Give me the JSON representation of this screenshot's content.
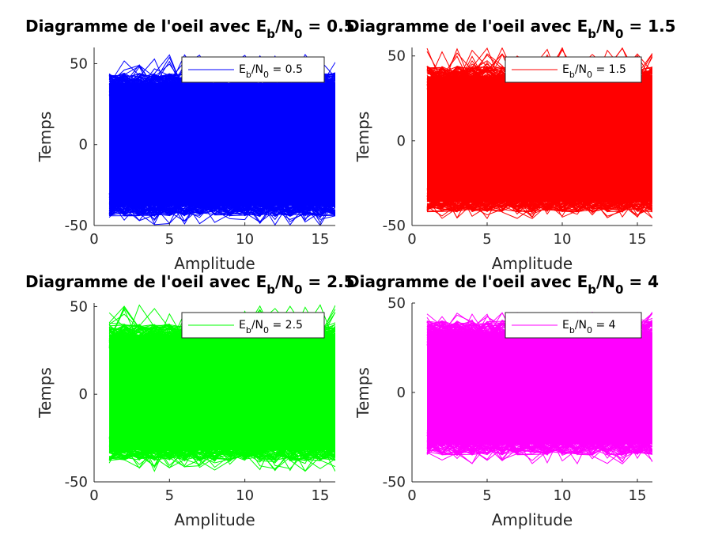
{
  "chart_data": [
    {
      "type": "line",
      "title_prefix": "Diagramme de l'oeil avec ",
      "ebn0": "0.5",
      "xlabel": "Amplitude",
      "ylabel": "Temps",
      "xlim": [
        0,
        16
      ],
      "ylim": [
        -50,
        60
      ],
      "xticks": [
        0,
        5,
        10,
        15
      ],
      "yticks": [
        -50,
        0,
        50
      ],
      "x_samples": [
        1,
        16
      ],
      "trace_range": [
        -42,
        42
      ],
      "trace_extremes": [
        -50,
        56
      ],
      "color": "#0000ff",
      "legend": {
        "location": "top-right",
        "entry": "E_b/N_0 = 0.5"
      }
    },
    {
      "type": "line",
      "title_prefix": "Diagramme de l'oeil avec ",
      "ebn0": "1.5",
      "xlabel": "Amplitude",
      "ylabel": "Temps",
      "xlim": [
        0,
        16
      ],
      "ylim": [
        -50,
        55
      ],
      "xticks": [
        0,
        5,
        10,
        15
      ],
      "yticks": [
        -50,
        0,
        50
      ],
      "x_samples": [
        1,
        16
      ],
      "trace_range": [
        -40,
        42
      ],
      "trace_extremes": [
        -46,
        55
      ],
      "color": "#ff0000",
      "legend": {
        "location": "top-right",
        "entry": "E_b/N_0 = 1.5"
      }
    },
    {
      "type": "line",
      "title_prefix": "Diagramme de l'oeil avec ",
      "ebn0": "2.5",
      "xlabel": "Amplitude",
      "ylabel": "Temps",
      "xlim": [
        0,
        16
      ],
      "ylim": [
        -50,
        52
      ],
      "xticks": [
        0,
        5,
        10,
        15
      ],
      "yticks": [
        -50,
        0,
        50
      ],
      "x_samples": [
        1,
        16
      ],
      "trace_range": [
        -36,
        38
      ],
      "trace_extremes": [
        -44,
        51
      ],
      "color": "#00ff00",
      "legend": {
        "location": "top-right",
        "entry": "E_b/N_0 = 2.5"
      }
    },
    {
      "type": "line",
      "title_prefix": "Diagramme de l'oeil avec ",
      "ebn0": "4",
      "xlabel": "Amplitude",
      "ylabel": "Temps",
      "xlim": [
        0,
        16
      ],
      "ylim": [
        -50,
        50
      ],
      "xticks": [
        0,
        5,
        10,
        15
      ],
      "yticks": [
        -50,
        0,
        50
      ],
      "x_samples": [
        1,
        16
      ],
      "trace_range": [
        -33,
        38
      ],
      "trace_extremes": [
        -40,
        45
      ],
      "color": "#ff00ff",
      "legend": {
        "location": "top-right",
        "entry": "E_b/N_0 = 4"
      }
    }
  ]
}
